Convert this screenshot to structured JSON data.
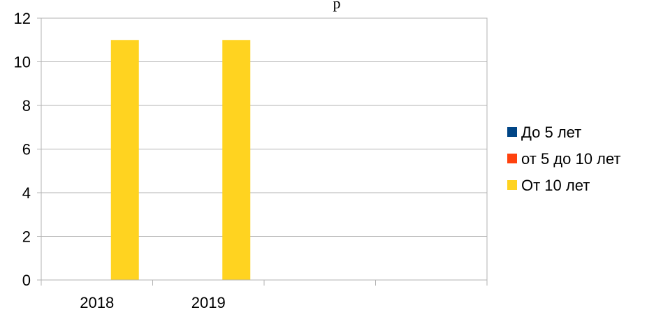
{
  "chart_data": {
    "type": "bar",
    "title": "р",
    "categories": [
      "2018",
      "2019",
      "",
      ""
    ],
    "series": [
      {
        "name": "До 5 лет",
        "color": "#004586",
        "values": [
          0,
          0,
          0,
          0
        ]
      },
      {
        "name": "от 5 до 10 лет",
        "color": "#ff420e",
        "values": [
          0,
          0,
          0,
          0
        ]
      },
      {
        "name": "От 10 лет",
        "color": "#ffd320",
        "values": [
          11,
          11,
          0,
          0
        ]
      }
    ],
    "ylim": [
      0,
      12
    ],
    "yticks": [
      "0",
      "2",
      "4",
      "6",
      "8",
      "10",
      "12"
    ],
    "grid": true,
    "legend": "right"
  }
}
